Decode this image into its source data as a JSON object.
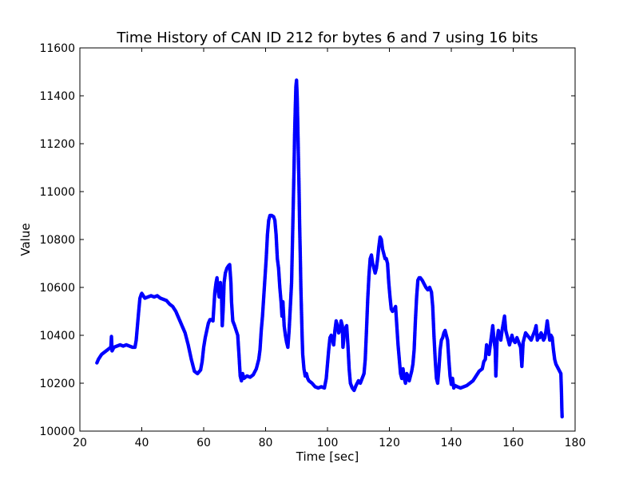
{
  "chart_data": {
    "type": "scatter",
    "title": "Time History of CAN ID 212 for bytes 6 and 7 using 16 bits",
    "xlabel": "Time [sec]",
    "ylabel": "Value",
    "xlim": [
      20,
      180
    ],
    "ylim": [
      10000,
      11600
    ],
    "xticks": [
      20,
      40,
      60,
      80,
      100,
      120,
      140,
      160,
      180
    ],
    "yticks": [
      10000,
      10200,
      10400,
      10600,
      10800,
      11000,
      11200,
      11400,
      11600
    ],
    "grid": false,
    "legend": "none",
    "marker_color": "#0000ff",
    "series": [
      {
        "points": [
          [
            25.5,
            10285
          ],
          [
            26,
            10300
          ],
          [
            26.5,
            10310
          ],
          [
            27,
            10320
          ],
          [
            27.5,
            10325
          ],
          [
            28,
            10330
          ],
          [
            28.5,
            10335
          ],
          [
            29,
            10340
          ],
          [
            29.5,
            10345
          ],
          [
            30,
            10350
          ],
          [
            30.2,
            10395
          ],
          [
            30.4,
            10335
          ],
          [
            30.8,
            10345
          ],
          [
            31,
            10350
          ],
          [
            32,
            10355
          ],
          [
            33,
            10360
          ],
          [
            34,
            10355
          ],
          [
            35,
            10360
          ],
          [
            36,
            10355
          ],
          [
            37,
            10350
          ],
          [
            37.8,
            10350
          ],
          [
            38.2,
            10380
          ],
          [
            38.6,
            10440
          ],
          [
            39,
            10500
          ],
          [
            39.4,
            10555
          ],
          [
            39.8,
            10570
          ],
          [
            40,
            10575
          ],
          [
            41,
            10555
          ],
          [
            42,
            10560
          ],
          [
            43,
            10565
          ],
          [
            44,
            10560
          ],
          [
            45,
            10565
          ],
          [
            46,
            10555
          ],
          [
            47,
            10550
          ],
          [
            48,
            10545
          ],
          [
            49,
            10530
          ],
          [
            50,
            10520
          ],
          [
            51,
            10500
          ],
          [
            52,
            10470
          ],
          [
            53,
            10440
          ],
          [
            54,
            10410
          ],
          [
            55,
            10360
          ],
          [
            56,
            10300
          ],
          [
            57,
            10250
          ],
          [
            58,
            10240
          ],
          [
            59,
            10255
          ],
          [
            59.5,
            10290
          ],
          [
            60,
            10350
          ],
          [
            60.5,
            10390
          ],
          [
            61,
            10420
          ],
          [
            61.5,
            10450
          ],
          [
            62,
            10465
          ],
          [
            62.5,
            10465
          ],
          [
            63,
            10460
          ],
          [
            63.3,
            10520
          ],
          [
            63.6,
            10580
          ],
          [
            64,
            10620
          ],
          [
            64.3,
            10640
          ],
          [
            64.6,
            10590
          ],
          [
            65,
            10560
          ],
          [
            65.4,
            10620
          ],
          [
            65.8,
            10550
          ],
          [
            66,
            10440
          ],
          [
            66.3,
            10510
          ],
          [
            66.6,
            10620
          ],
          [
            67,
            10660
          ],
          [
            67.5,
            10680
          ],
          [
            68,
            10690
          ],
          [
            68.4,
            10695
          ],
          [
            68.8,
            10620
          ],
          [
            69,
            10540
          ],
          [
            69.4,
            10460
          ],
          [
            70,
            10440
          ],
          [
            70.5,
            10420
          ],
          [
            71,
            10400
          ],
          [
            71.4,
            10320
          ],
          [
            71.8,
            10230
          ],
          [
            72.2,
            10210
          ],
          [
            72.6,
            10240
          ],
          [
            73,
            10220
          ],
          [
            74,
            10230
          ],
          [
            75,
            10225
          ],
          [
            76,
            10235
          ],
          [
            77,
            10260
          ],
          [
            77.8,
            10300
          ],
          [
            78.2,
            10340
          ],
          [
            78.6,
            10420
          ],
          [
            79,
            10480
          ],
          [
            79.4,
            10560
          ],
          [
            79.8,
            10640
          ],
          [
            80.2,
            10720
          ],
          [
            80.6,
            10820
          ],
          [
            81,
            10880
          ],
          [
            81.4,
            10900
          ],
          [
            82,
            10900
          ],
          [
            82.6,
            10895
          ],
          [
            83,
            10880
          ],
          [
            83.4,
            10820
          ],
          [
            83.8,
            10720
          ],
          [
            84.2,
            10680
          ],
          [
            84.6,
            10600
          ],
          [
            85,
            10540
          ],
          [
            85.3,
            10480
          ],
          [
            85.6,
            10540
          ],
          [
            86,
            10440
          ],
          [
            86.4,
            10400
          ],
          [
            86.8,
            10370
          ],
          [
            87.2,
            10350
          ],
          [
            87.6,
            10420
          ],
          [
            88,
            10520
          ],
          [
            88.4,
            10620
          ],
          [
            88.6,
            10740
          ],
          [
            88.8,
            10860
          ],
          [
            89,
            10980
          ],
          [
            89.2,
            11100
          ],
          [
            89.4,
            11250
          ],
          [
            89.6,
            11350
          ],
          [
            89.8,
            11440
          ],
          [
            90,
            11465
          ],
          [
            90.2,
            11400
          ],
          [
            90.4,
            11280
          ],
          [
            90.6,
            11150
          ],
          [
            90.8,
            11020
          ],
          [
            91,
            10860
          ],
          [
            91.2,
            10740
          ],
          [
            91.4,
            10600
          ],
          [
            91.6,
            10500
          ],
          [
            91.8,
            10400
          ],
          [
            92,
            10320
          ],
          [
            92.4,
            10260
          ],
          [
            92.8,
            10230
          ],
          [
            93.2,
            10240
          ],
          [
            93.6,
            10220
          ],
          [
            94,
            10210
          ],
          [
            95,
            10200
          ],
          [
            96,
            10185
          ],
          [
            97,
            10180
          ],
          [
            98,
            10185
          ],
          [
            99,
            10180
          ],
          [
            99.6,
            10220
          ],
          [
            100,
            10280
          ],
          [
            100.4,
            10340
          ],
          [
            100.8,
            10390
          ],
          [
            101.2,
            10400
          ],
          [
            101.6,
            10380
          ],
          [
            102,
            10360
          ],
          [
            102.4,
            10420
          ],
          [
            102.8,
            10460
          ],
          [
            103.2,
            10440
          ],
          [
            103.6,
            10410
          ],
          [
            104,
            10420
          ],
          [
            104.4,
            10460
          ],
          [
            104.8,
            10440
          ],
          [
            105,
            10350
          ],
          [
            105.4,
            10400
          ],
          [
            105.8,
            10430
          ],
          [
            106.2,
            10440
          ],
          [
            106.6,
            10360
          ],
          [
            107,
            10260
          ],
          [
            107.4,
            10200
          ],
          [
            108,
            10180
          ],
          [
            108.6,
            10170
          ],
          [
            109.2,
            10190
          ],
          [
            110,
            10210
          ],
          [
            110.6,
            10200
          ],
          [
            111.2,
            10220
          ],
          [
            111.8,
            10240
          ],
          [
            112.2,
            10300
          ],
          [
            112.6,
            10420
          ],
          [
            113,
            10550
          ],
          [
            113.4,
            10650
          ],
          [
            113.8,
            10720
          ],
          [
            114.2,
            10735
          ],
          [
            114.6,
            10700
          ],
          [
            115,
            10680
          ],
          [
            115.4,
            10660
          ],
          [
            115.8,
            10680
          ],
          [
            116.2,
            10720
          ],
          [
            116.6,
            10770
          ],
          [
            117,
            10810
          ],
          [
            117.4,
            10800
          ],
          [
            117.8,
            10760
          ],
          [
            118.2,
            10740
          ],
          [
            118.6,
            10720
          ],
          [
            119,
            10720
          ],
          [
            119.4,
            10700
          ],
          [
            119.8,
            10620
          ],
          [
            120.2,
            10560
          ],
          [
            120.6,
            10510
          ],
          [
            121,
            10500
          ],
          [
            121.6,
            10510
          ],
          [
            122,
            10520
          ],
          [
            122.4,
            10440
          ],
          [
            122.8,
            10360
          ],
          [
            123.2,
            10300
          ],
          [
            123.6,
            10240
          ],
          [
            124,
            10220
          ],
          [
            124.4,
            10260
          ],
          [
            124.8,
            10220
          ],
          [
            125.2,
            10200
          ],
          [
            125.6,
            10240
          ],
          [
            126,
            10230
          ],
          [
            126.4,
            10210
          ],
          [
            126.8,
            10230
          ],
          [
            127.2,
            10250
          ],
          [
            127.6,
            10280
          ],
          [
            128,
            10340
          ],
          [
            128.4,
            10460
          ],
          [
            128.8,
            10560
          ],
          [
            129.2,
            10630
          ],
          [
            129.6,
            10640
          ],
          [
            130,
            10640
          ],
          [
            130.6,
            10630
          ],
          [
            131.2,
            10615
          ],
          [
            131.8,
            10600
          ],
          [
            132.4,
            10590
          ],
          [
            133,
            10600
          ],
          [
            133.6,
            10580
          ],
          [
            134,
            10520
          ],
          [
            134.4,
            10400
          ],
          [
            134.8,
            10300
          ],
          [
            135.2,
            10220
          ],
          [
            135.6,
            10200
          ],
          [
            136,
            10260
          ],
          [
            136.4,
            10340
          ],
          [
            136.8,
            10380
          ],
          [
            137.2,
            10390
          ],
          [
            137.6,
            10410
          ],
          [
            138,
            10420
          ],
          [
            138.4,
            10400
          ],
          [
            138.8,
            10380
          ],
          [
            139.2,
            10300
          ],
          [
            139.6,
            10230
          ],
          [
            140,
            10195
          ],
          [
            140.4,
            10220
          ],
          [
            140.8,
            10180
          ],
          [
            141.2,
            10190
          ],
          [
            142,
            10185
          ],
          [
            143,
            10180
          ],
          [
            144,
            10185
          ],
          [
            145,
            10190
          ],
          [
            146,
            10200
          ],
          [
            147,
            10210
          ],
          [
            148,
            10230
          ],
          [
            149,
            10250
          ],
          [
            150,
            10260
          ],
          [
            150.5,
            10290
          ],
          [
            151,
            10300
          ],
          [
            151.4,
            10360
          ],
          [
            151.8,
            10340
          ],
          [
            152.2,
            10320
          ],
          [
            152.6,
            10360
          ],
          [
            153,
            10400
          ],
          [
            153.4,
            10440
          ],
          [
            153.8,
            10380
          ],
          [
            154.2,
            10340
          ],
          [
            154.4,
            10230
          ],
          [
            154.8,
            10380
          ],
          [
            155.2,
            10420
          ],
          [
            155.6,
            10400
          ],
          [
            156,
            10380
          ],
          [
            156.4,
            10420
          ],
          [
            156.8,
            10450
          ],
          [
            157.2,
            10480
          ],
          [
            157.6,
            10420
          ],
          [
            158,
            10400
          ],
          [
            158.4,
            10380
          ],
          [
            158.8,
            10360
          ],
          [
            159.2,
            10380
          ],
          [
            159.6,
            10400
          ],
          [
            160,
            10380
          ],
          [
            160.6,
            10370
          ],
          [
            161.2,
            10390
          ],
          [
            161.8,
            10370
          ],
          [
            162.4,
            10350
          ],
          [
            162.8,
            10270
          ],
          [
            163.2,
            10370
          ],
          [
            163.6,
            10390
          ],
          [
            164,
            10410
          ],
          [
            164.6,
            10400
          ],
          [
            165.2,
            10390
          ],
          [
            165.8,
            10380
          ],
          [
            166.4,
            10400
          ],
          [
            167,
            10420
          ],
          [
            167.4,
            10440
          ],
          [
            167.8,
            10380
          ],
          [
            168.2,
            10400
          ],
          [
            168.6,
            10390
          ],
          [
            169,
            10410
          ],
          [
            169.4,
            10400
          ],
          [
            169.8,
            10380
          ],
          [
            170.2,
            10390
          ],
          [
            170.6,
            10420
          ],
          [
            171,
            10460
          ],
          [
            171.4,
            10420
          ],
          [
            171.8,
            10380
          ],
          [
            172.2,
            10400
          ],
          [
            172.6,
            10390
          ],
          [
            173,
            10340
          ],
          [
            173.4,
            10300
          ],
          [
            173.8,
            10280
          ],
          [
            174.2,
            10270
          ],
          [
            174.6,
            10260
          ],
          [
            175,
            10250
          ],
          [
            175.4,
            10240
          ],
          [
            175.6,
            10160
          ],
          [
            175.7,
            10100
          ],
          [
            175.8,
            10060
          ]
        ]
      }
    ]
  }
}
